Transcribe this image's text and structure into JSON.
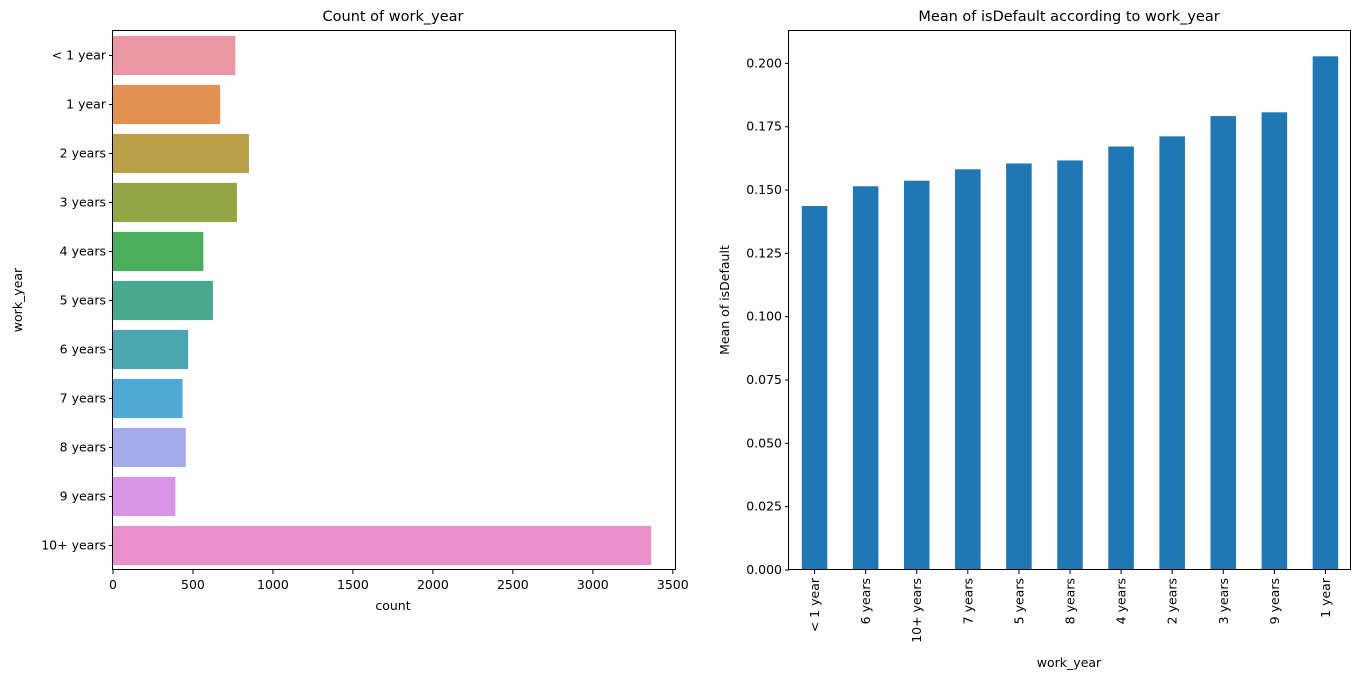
{
  "chart_data": [
    {
      "type": "bar",
      "orientation": "horizontal",
      "title": "Count of work_year",
      "xlabel": "count",
      "ylabel": "work_year",
      "categories": [
        "< 1 year",
        "1 year",
        "2 years",
        "3 years",
        "4 years",
        "5 years",
        "6 years",
        "7 years",
        "8 years",
        "9 years",
        "10+ years"
      ],
      "values": [
        765,
        670,
        850,
        775,
        565,
        625,
        470,
        435,
        455,
        390,
        3365
      ],
      "colors": [
        "#ea96a3",
        "#e39150",
        "#b9a048",
        "#93a544",
        "#4aae5c",
        "#48a990",
        "#4aa6b0",
        "#50a9d4",
        "#a5aae8",
        "#d894e6",
        "#e98fc9"
      ],
      "xlim": [
        0,
        3520
      ],
      "xticks": [
        "0",
        "500",
        "1000",
        "1500",
        "2000",
        "2500",
        "3000",
        "3500"
      ],
      "legend": "none",
      "grid": false
    },
    {
      "type": "bar",
      "orientation": "vertical",
      "title": "Mean of isDefault according to work_year",
      "xlabel": "work_year",
      "ylabel": "Mean of isDefault",
      "categories": [
        "< 1 year",
        "6 years",
        "10+ years",
        "7 years",
        "5 years",
        "8 years",
        "4 years",
        "2 years",
        "3 years",
        "9 years",
        "1 year"
      ],
      "values": [
        0.1437,
        0.1515,
        0.1537,
        0.1582,
        0.1605,
        0.1617,
        0.1672,
        0.1712,
        0.1792,
        0.1807,
        0.2028
      ],
      "color": "#1f77b4",
      "ylim": [
        0,
        0.2128
      ],
      "yticks": [
        "0.000",
        "0.025",
        "0.050",
        "0.075",
        "0.100",
        "0.125",
        "0.150",
        "0.175",
        "0.200"
      ],
      "legend": "none",
      "grid": false
    }
  ]
}
